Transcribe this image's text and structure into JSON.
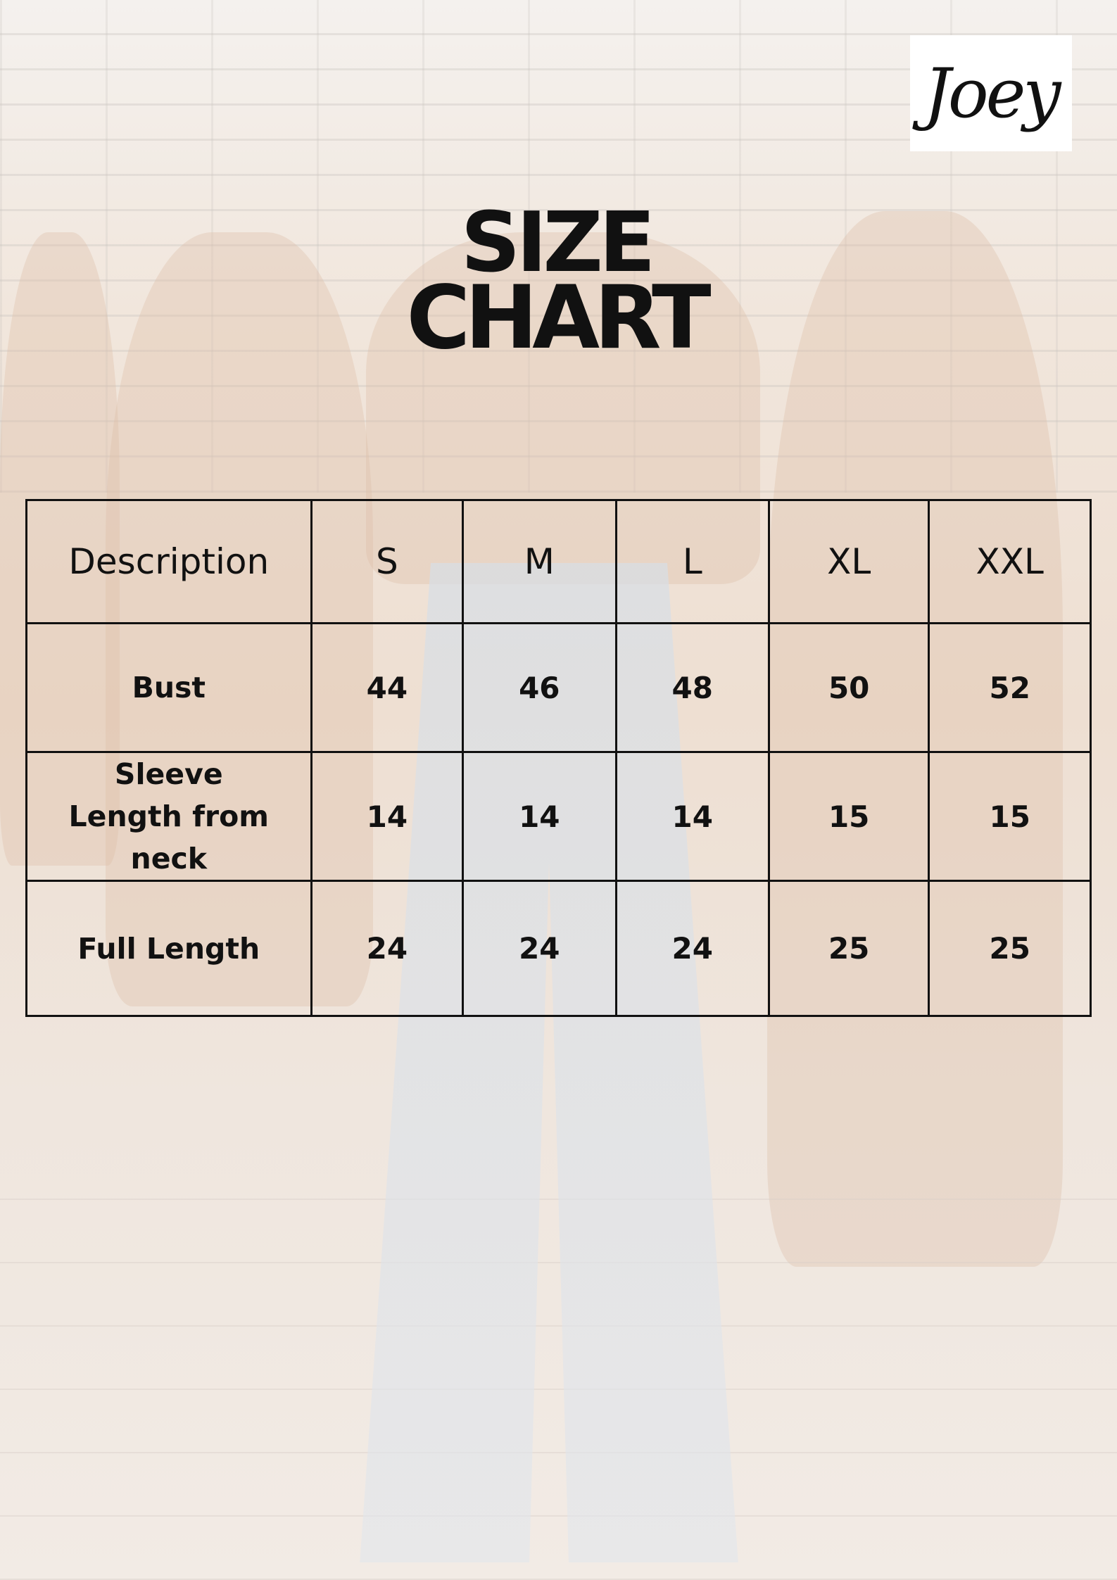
{
  "brand": {
    "logo_text": "Joey"
  },
  "title": {
    "line1": "SIZE",
    "line2": "CHART"
  },
  "table": {
    "headers": [
      "Description",
      "S",
      "M",
      "L",
      "XL",
      "XXL"
    ],
    "rows": [
      {
        "label": "Bust",
        "values": [
          "44",
          "46",
          "48",
          "50",
          "52"
        ]
      },
      {
        "label": "Sleeve Length from neck",
        "values": [
          "14",
          "14",
          "14",
          "15",
          "15"
        ]
      },
      {
        "label": "Full Length",
        "values": [
          "24",
          "24",
          "24",
          "25",
          "25"
        ]
      }
    ]
  }
}
